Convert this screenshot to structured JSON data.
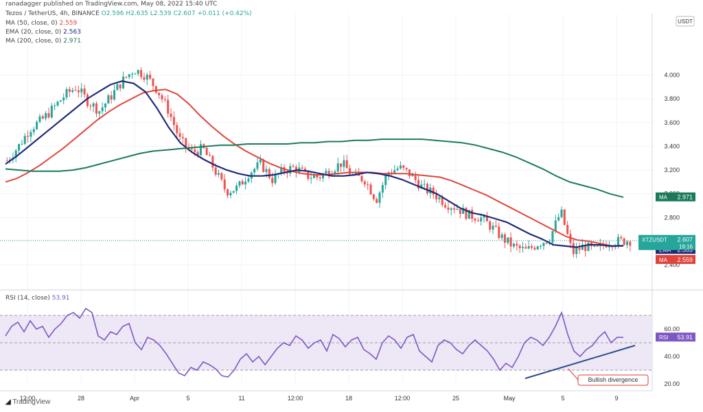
{
  "header": {
    "publisher": "ranadagger published on TradingView.com, May 08, 2022 15:40 UTC",
    "symbol_title": "Tezos / TetherUS, 4h, BINANCE",
    "ohlc": {
      "o": "O2.596",
      "h": "H2.635",
      "l": "L2.539",
      "c": "C2.607",
      "chg": "+0.011 (+0.42%)"
    },
    "ind_ma50": {
      "label": "MA (50, close, 0)",
      "value": "2.559"
    },
    "ind_ema20": {
      "label": "EMA (20, close, 0)",
      "value": "2.563"
    },
    "ind_ma200": {
      "label": "MA (200, close, 0)",
      "value": "2.971"
    },
    "rsi_title": "RSI (14, close)",
    "rsi_value": "53.91"
  },
  "footer": {
    "brand": "TradingView"
  },
  "colors": {
    "up": "#26a69a",
    "down": "#ef5350",
    "ema20": "#1e2a78",
    "ma50": "#e0443a",
    "ma200": "#1b7a5a",
    "rsi": "#7e57c2",
    "rsi_band": "#ede7f6",
    "trend": "#2b4a8b"
  },
  "chart_data": [
    {
      "type": "candlestick",
      "title": "Tezos / TetherUS, 4h, BINANCE",
      "currency": "USDT",
      "ylim": [
        2.4,
        4.2
      ],
      "y_ticks": [
        "4.000",
        "3.800",
        "3.600",
        "3.400",
        "3.200",
        "3.000",
        "2.800",
        "2.600",
        "2.400"
      ],
      "x_ticks": [
        "12:00",
        "28",
        "Apr",
        "5",
        "11",
        "12:00",
        "18",
        "12:00",
        "25",
        "May",
        "5",
        "9"
      ],
      "series": [
        {
          "name": "MA (50, close, 0)",
          "last": 2.559,
          "values": [
            3.1,
            3.13,
            3.18,
            3.24,
            3.31,
            3.38,
            3.46,
            3.54,
            3.62,
            3.69,
            3.75,
            3.8,
            3.85,
            3.87,
            3.88,
            3.84,
            3.76,
            3.66,
            3.57,
            3.49,
            3.42,
            3.36,
            3.31,
            3.26,
            3.22,
            3.19,
            3.17,
            3.16,
            3.16,
            3.17,
            3.18,
            3.18,
            3.18,
            3.17,
            3.17,
            3.17,
            3.16,
            3.15,
            3.14,
            3.11,
            3.07,
            3.03,
            2.99,
            2.94,
            2.89,
            2.84,
            2.79,
            2.74,
            2.69,
            2.64,
            2.61,
            2.6,
            2.58,
            2.56,
            2.559
          ]
        },
        {
          "name": "EMA (20, close, 0)",
          "last": 2.563,
          "values": [
            3.25,
            3.32,
            3.4,
            3.48,
            3.56,
            3.64,
            3.72,
            3.8,
            3.86,
            3.92,
            3.95,
            3.93,
            3.86,
            3.72,
            3.56,
            3.43,
            3.35,
            3.29,
            3.24,
            3.2,
            3.17,
            3.15,
            3.15,
            3.16,
            3.18,
            3.2,
            3.19,
            3.17,
            3.15,
            3.15,
            3.16,
            3.18,
            3.17,
            3.15,
            3.12,
            3.08,
            3.04,
            3.0,
            2.94,
            2.88,
            2.84,
            2.82,
            2.79,
            2.76,
            2.71,
            2.66,
            2.62,
            2.57,
            2.56,
            2.55,
            2.57,
            2.57,
            2.56,
            2.563
          ]
        },
        {
          "name": "MA (200, close, 0)",
          "last": 2.971,
          "values": [
            3.21,
            3.2,
            3.19,
            3.19,
            3.19,
            3.2,
            3.22,
            3.25,
            3.28,
            3.31,
            3.34,
            3.36,
            3.37,
            3.38,
            3.39,
            3.4,
            3.41,
            3.41,
            3.42,
            3.42,
            3.42,
            3.42,
            3.43,
            3.43,
            3.44,
            3.44,
            3.45,
            3.45,
            3.46,
            3.46,
            3.46,
            3.46,
            3.45,
            3.44,
            3.43,
            3.41,
            3.38,
            3.35,
            3.31,
            3.26,
            3.21,
            3.15,
            3.1,
            3.07,
            3.04,
            3.0,
            2.971
          ]
        }
      ],
      "last_price": {
        "symbol": "XTZUSDT",
        "value": 2.607,
        "countdown": "19:16"
      },
      "price_labels": [
        {
          "tag": "MA",
          "value": "2.971",
          "series": "ma200"
        },
        {
          "tag": "EMA",
          "value": "2.563",
          "series": "ema20"
        },
        {
          "tag": "MA",
          "value": "2.559",
          "series": "ma50"
        }
      ],
      "close_trend": [
        3.28,
        3.4,
        3.55,
        3.62,
        3.72,
        3.83,
        3.9,
        3.78,
        3.7,
        3.82,
        3.95,
        4.05,
        4.0,
        3.88,
        3.7,
        3.45,
        3.35,
        3.38,
        3.2,
        3.02,
        3.05,
        3.18,
        3.25,
        3.12,
        3.2,
        3.22,
        3.15,
        3.14,
        3.2,
        3.26,
        3.15,
        3.12,
        2.95,
        3.18,
        3.22,
        3.16,
        3.05,
        3.0,
        2.92,
        2.88,
        2.82,
        2.8,
        2.72,
        2.62,
        2.55,
        2.52,
        2.58,
        2.62,
        2.85,
        2.5,
        2.56,
        2.52,
        2.59,
        2.6,
        2.607
      ]
    },
    {
      "type": "line",
      "title": "RSI (14, close)",
      "ylim": [
        20,
        80
      ],
      "y_ticks": [
        "60.00",
        "40.00",
        "20.00"
      ],
      "band": [
        30,
        70
      ],
      "last": 53.91,
      "values": [
        55,
        62,
        65,
        58,
        66,
        60,
        62,
        54,
        60,
        64,
        70,
        72,
        68,
        75,
        72,
        55,
        52,
        58,
        56,
        62,
        64,
        50,
        45,
        54,
        52,
        48,
        42,
        35,
        28,
        26,
        32,
        30,
        36,
        34,
        31,
        26,
        25,
        30,
        38,
        42,
        36,
        40,
        34,
        40,
        46,
        50,
        48,
        55,
        52,
        46,
        50,
        52,
        44,
        56,
        53,
        47,
        52,
        54,
        45,
        42,
        38,
        50,
        55,
        52,
        46,
        54,
        56,
        44,
        40,
        36,
        48,
        52,
        50,
        45,
        42,
        48,
        52,
        48,
        44,
        38,
        30,
        35,
        32,
        40,
        50,
        54,
        52,
        48,
        54,
        62,
        72,
        56,
        44,
        40,
        45,
        48,
        54,
        58,
        50,
        54,
        53.91
      ],
      "trendline": {
        "from_rsi": 25,
        "to_rsi": 48
      },
      "annotation": "Bullish divergence"
    }
  ]
}
